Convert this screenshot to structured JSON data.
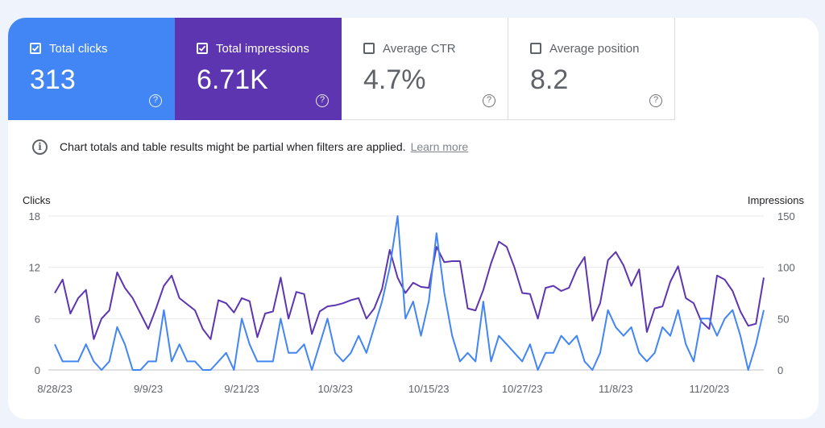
{
  "metrics": {
    "clicks": {
      "label": "Total clicks",
      "value": "313",
      "color": "#4285f4"
    },
    "impressions": {
      "label": "Total impressions",
      "value": "6.71K",
      "color": "#5e35b1"
    },
    "ctr": {
      "label": "Average CTR",
      "value": "4.7%"
    },
    "position": {
      "label": "Average position",
      "value": "8.2"
    },
    "help_glyph": "?"
  },
  "notice": {
    "icon": "i",
    "text": "Chart totals and table results might be partial when filters are applied.",
    "link": "Learn more"
  },
  "chart_data": {
    "type": "line",
    "ylabel_left": "Clicks",
    "ylabel_right": "Impressions",
    "y_left_ticks": [
      0,
      6,
      12,
      18
    ],
    "y_right_ticks": [
      0,
      50,
      100,
      150
    ],
    "y_left_range": [
      0,
      18
    ],
    "y_right_range": [
      0,
      150
    ],
    "grid": true,
    "x_tick_labels": [
      "8/28/23",
      "9/9/23",
      "9/21/23",
      "10/3/23",
      "10/15/23",
      "10/27/23",
      "11/8/23",
      "11/20/23"
    ],
    "x_tick_index": [
      0,
      12,
      24,
      36,
      48,
      60,
      72,
      84
    ],
    "series": [
      {
        "axis": "left",
        "color": "#4285f4",
        "values": [
          3,
          1,
          1,
          1,
          3,
          1,
          0,
          1,
          5,
          3,
          0,
          0,
          1,
          1,
          7,
          1,
          3,
          1,
          1,
          0,
          0,
          1,
          2,
          0,
          6,
          3,
          1,
          1,
          1,
          6,
          2,
          2,
          3,
          0,
          3,
          6,
          2,
          1,
          2,
          4,
          2,
          5,
          8,
          12,
          18,
          6,
          8,
          4,
          8,
          16,
          9,
          4,
          1,
          2,
          1,
          8,
          1,
          4,
          3,
          2,
          1,
          3,
          0,
          2,
          2,
          4,
          3,
          4,
          1,
          0,
          2,
          7,
          5,
          4,
          5,
          2,
          1,
          2,
          5,
          4,
          7,
          3,
          1,
          6,
          6,
          4,
          6,
          7,
          4,
          0,
          3,
          7
        ]
      },
      {
        "axis": "right",
        "color": "#5e35b1",
        "values": [
          75,
          88,
          55,
          70,
          78,
          30,
          50,
          58,
          95,
          80,
          70,
          55,
          40,
          60,
          82,
          92,
          70,
          64,
          58,
          40,
          30,
          68,
          65,
          56,
          70,
          67,
          32,
          55,
          57,
          90,
          50,
          76,
          74,
          35,
          57,
          62,
          63,
          65,
          68,
          70,
          50,
          60,
          79,
          117,
          90,
          75,
          85,
          81,
          80,
          120,
          105,
          106,
          106,
          60,
          58,
          78,
          104,
          125,
          120,
          100,
          75,
          74,
          50,
          80,
          82,
          77,
          80,
          98,
          110,
          48,
          65,
          107,
          115,
          102,
          82,
          98,
          37,
          60,
          62,
          86,
          101,
          70,
          65,
          47,
          40,
          92,
          88,
          77,
          57,
          43,
          45,
          90
        ]
      }
    ]
  }
}
